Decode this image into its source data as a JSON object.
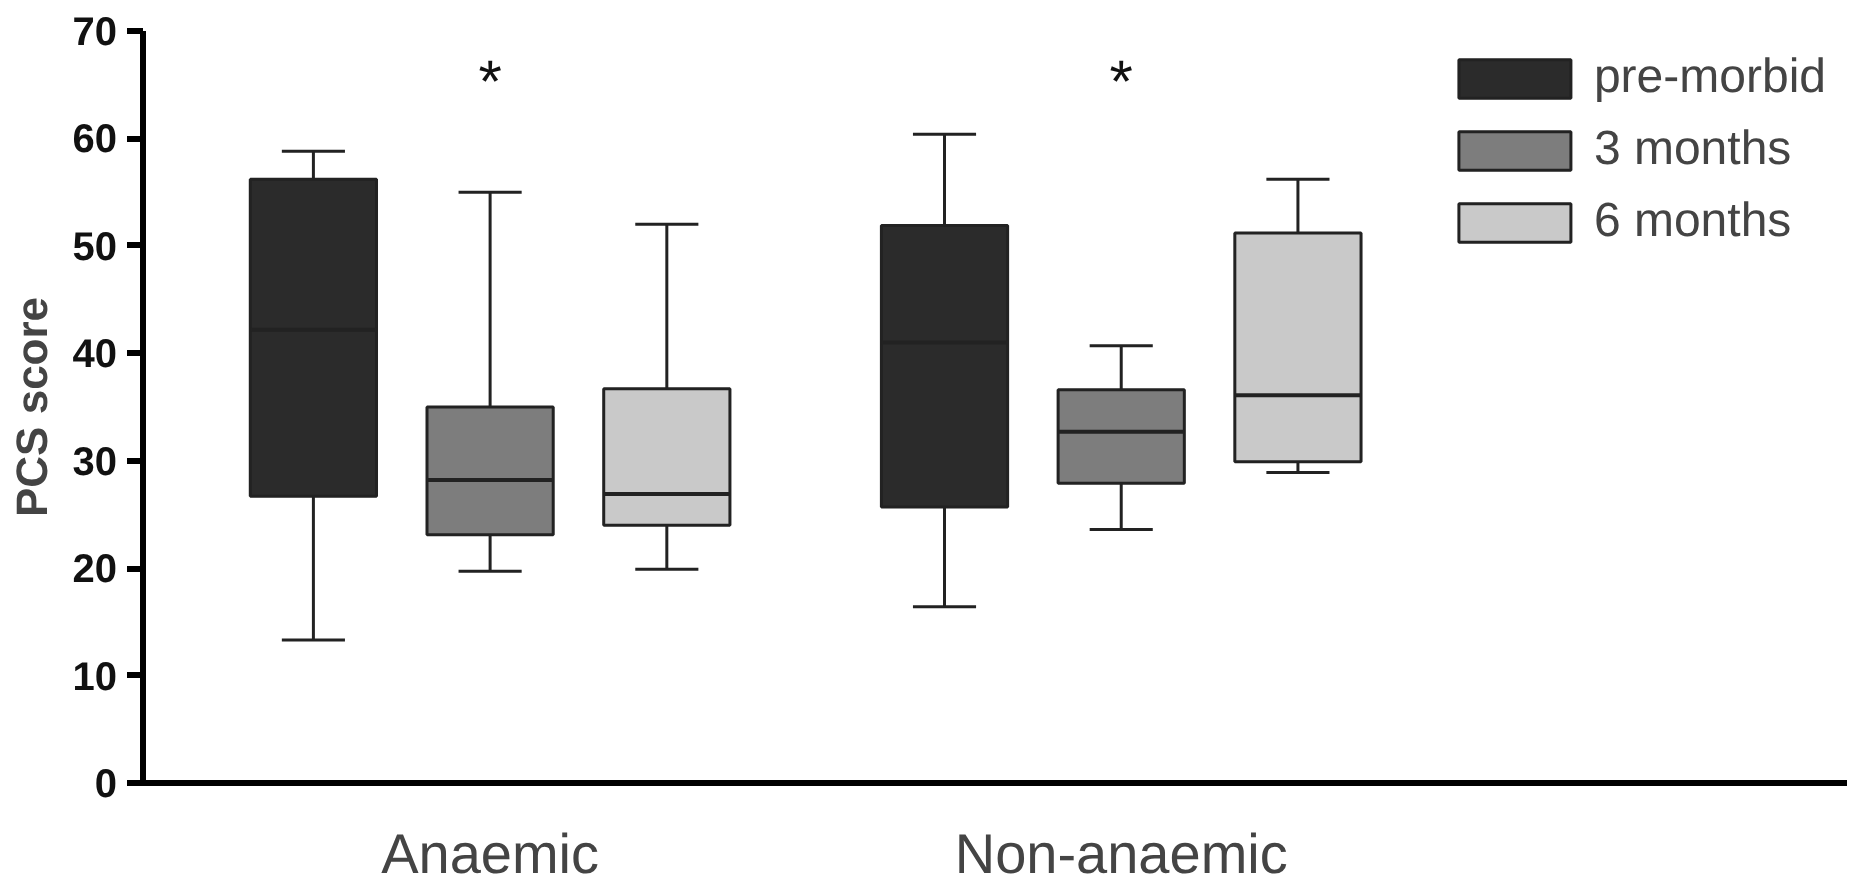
{
  "chart_data": {
    "type": "box",
    "ylabel": "PCS score",
    "categories": [
      "Anaemic",
      "Non-anaemic"
    ],
    "series": [
      {
        "name": "pre-morbid",
        "color": "#2b2b2b",
        "boxes": [
          {
            "low": 13.3,
            "q1": 26.7,
            "median": 42.2,
            "q3": 56.2,
            "high": 58.8
          },
          {
            "low": 16.4,
            "q1": 25.7,
            "median": 41.0,
            "q3": 51.9,
            "high": 60.4
          }
        ]
      },
      {
        "name": "3 months",
        "color": "#7d7d7d",
        "boxes": [
          {
            "low": 19.7,
            "q1": 23.1,
            "median": 28.2,
            "q3": 35.0,
            "high": 55.0
          },
          {
            "low": 23.6,
            "q1": 27.9,
            "median": 32.7,
            "q3": 36.6,
            "high": 40.7
          }
        ]
      },
      {
        "name": "6 months",
        "color": "#c9c9c9",
        "boxes": [
          {
            "low": 19.9,
            "q1": 24.0,
            "median": 26.9,
            "q3": 36.7,
            "high": 52.0
          },
          {
            "low": 28.9,
            "q1": 29.9,
            "median": 36.1,
            "q3": 51.2,
            "high": 56.2
          }
        ]
      }
    ],
    "annotations": [
      "*",
      "*"
    ],
    "ylim": [
      0,
      70
    ],
    "yticks": [
      0,
      10,
      20,
      30,
      40,
      50,
      60,
      70
    ],
    "grid": false,
    "legend": "top right"
  }
}
